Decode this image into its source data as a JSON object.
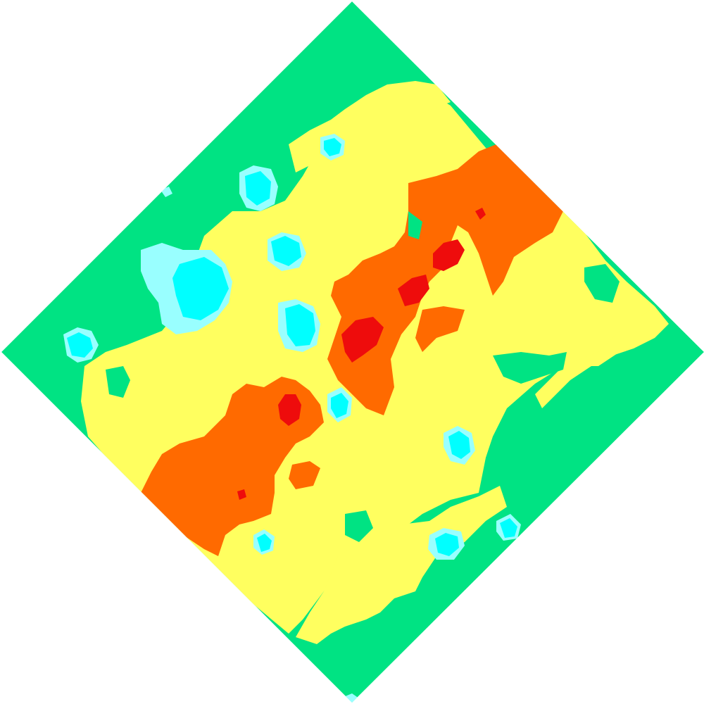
{
  "map": {
    "kind": "terrain-heightmap",
    "orientation": "diamond",
    "colors": {
      "background": "#ffffff",
      "light-cyan": "#99ffff",
      "cyan": "#00ffff",
      "green": "#00e383",
      "yellow": "#ffff5f",
      "orange": "#ff6a00",
      "red": "#ee0c0c"
    },
    "legend": [],
    "labels": []
  }
}
